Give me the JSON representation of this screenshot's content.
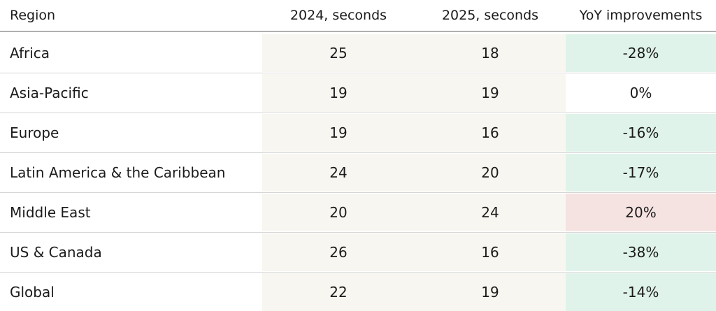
{
  "table": {
    "columns": [
      "Region",
      "2024, seconds",
      "2025, seconds",
      "YoY improvements"
    ],
    "rows": [
      {
        "region": "Africa",
        "y2024": "25",
        "y2025": "18",
        "yoy": "-28%",
        "trend": "down"
      },
      {
        "region": "Asia-Pacific",
        "y2024": "19",
        "y2025": "19",
        "yoy": "0%",
        "trend": "flat"
      },
      {
        "region": "Europe",
        "y2024": "19",
        "y2025": "16",
        "yoy": "-16%",
        "trend": "down"
      },
      {
        "region": "Latin America & the Caribbean",
        "y2024": "24",
        "y2025": "20",
        "yoy": "-17%",
        "trend": "down"
      },
      {
        "region": "Middle East",
        "y2024": "20",
        "y2025": "24",
        "yoy": "20%",
        "trend": "up"
      },
      {
        "region": "US & Canada",
        "y2024": "26",
        "y2025": "16",
        "yoy": "-38%",
        "trend": "down"
      },
      {
        "region": "Global",
        "y2024": "22",
        "y2025": "19",
        "yoy": "-14%",
        "trend": "down"
      }
    ]
  },
  "colors": {
    "trend": {
      "down": "#dff3ea",
      "flat": "#ffffff",
      "up": "#f5e3e2"
    },
    "seconds_column_bg": "#f8f6f0",
    "row_divider": "#d6d6d6",
    "header_border": "#b0b0b0",
    "text": "#1b1b1b"
  },
  "chart_data": {
    "type": "table",
    "columns": [
      "Region",
      "2024, seconds",
      "2025, seconds",
      "YoY improvements"
    ],
    "rows": [
      [
        "Africa",
        25,
        18,
        "-28%"
      ],
      [
        "Asia-Pacific",
        19,
        19,
        "0%"
      ],
      [
        "Europe",
        19,
        16,
        "-16%"
      ],
      [
        "Latin America & the Caribbean",
        24,
        20,
        "-17%"
      ],
      [
        "Middle East",
        20,
        24,
        "20%"
      ],
      [
        "US & Canada",
        26,
        16,
        "-38%"
      ],
      [
        "Global",
        22,
        19,
        "-14%"
      ]
    ],
    "notes": "Negative YoY values shaded mint green (improvement), positive shaded pink (regression), zero white"
  }
}
